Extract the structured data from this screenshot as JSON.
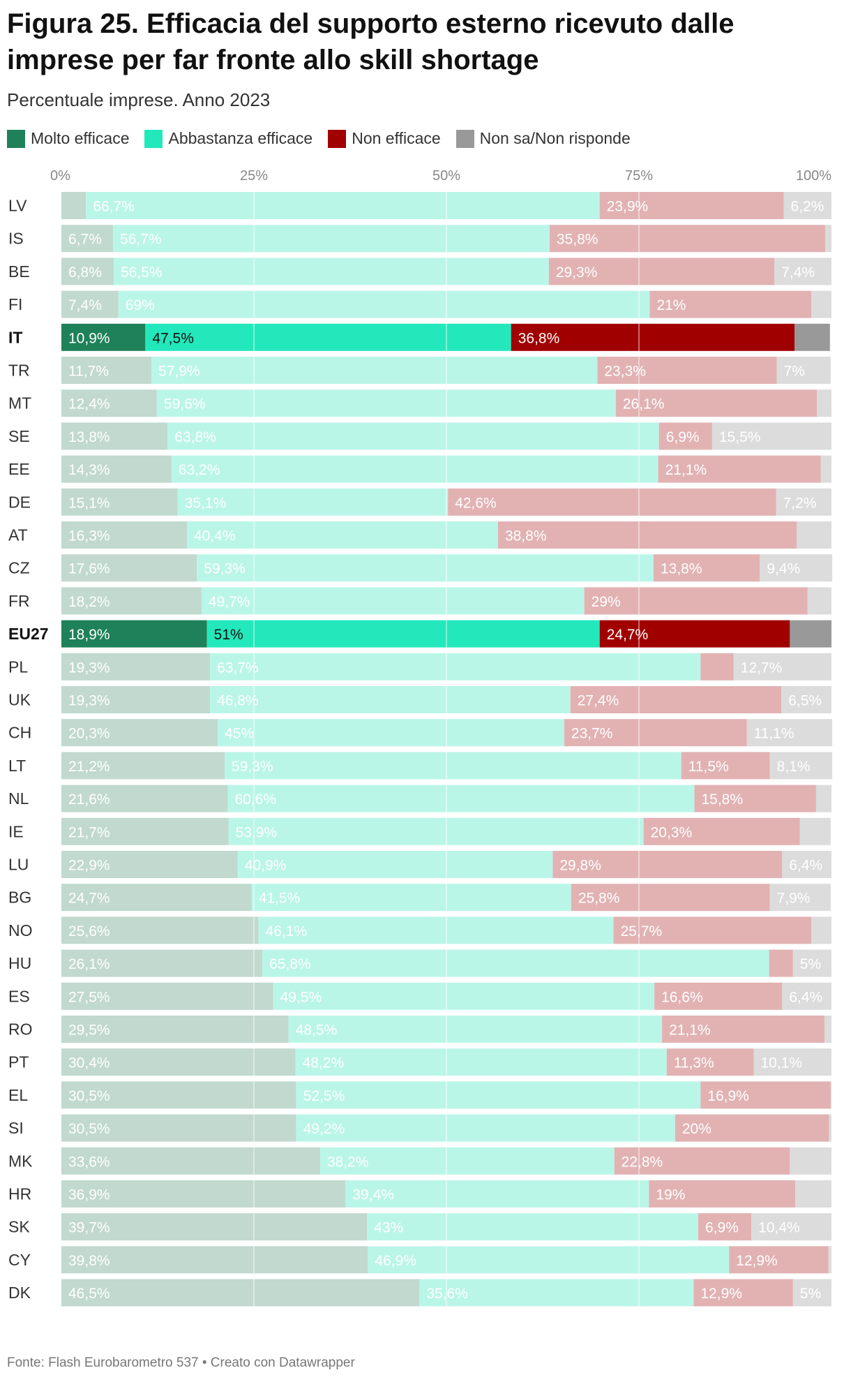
{
  "chart_data": {
    "type": "bar",
    "orientation": "horizontal-stacked-100",
    "title": "Figura 25. Efficacia del supporto esterno ricevuto dalle imprese per far fronte allo skill shortage",
    "subtitle": "Percentuale imprese. Anno 2023",
    "source": "Fonte: Flash Eurobarometro 537 • Creato con Datawrapper",
    "xlim": [
      0,
      100
    ],
    "ticks": [
      {
        "value": 0,
        "label": "0%"
      },
      {
        "value": 25,
        "label": "25%"
      },
      {
        "value": 50,
        "label": "50%"
      },
      {
        "value": 75,
        "label": "75%"
      },
      {
        "value": 100,
        "label": "100%"
      }
    ],
    "highlight": [
      "IT",
      "EU27"
    ],
    "legend_position": "top",
    "series": [
      {
        "name": "Molto efficace",
        "color": "#1f8159",
        "muted_color": "#c1d9cf"
      },
      {
        "name": "Abbastanza efficace",
        "color": "#22e8bb",
        "muted_color": "#baf6e8"
      },
      {
        "name": "Non efficace",
        "color": "#a10000",
        "muted_color": "#e2b2b3"
      },
      {
        "name": "Non sa/Non risponde",
        "color": "#999999",
        "muted_color": "#dcdcdc"
      }
    ],
    "rows": [
      {
        "country": "LV",
        "values": [
          3.2,
          66.7,
          23.9,
          6.2
        ],
        "labels": [
          "",
          "66,7%",
          "23,9%",
          "6,2%"
        ]
      },
      {
        "country": "IS",
        "values": [
          6.7,
          56.7,
          35.8,
          0.8
        ],
        "labels": [
          "6,7%",
          "56,7%",
          "35,8%",
          ""
        ]
      },
      {
        "country": "BE",
        "values": [
          6.8,
          56.5,
          29.3,
          7.4
        ],
        "labels": [
          "6,8%",
          "56,5%",
          "29,3%",
          "7,4%"
        ]
      },
      {
        "country": "FI",
        "values": [
          7.4,
          69,
          21,
          2.6
        ],
        "labels": [
          "7,4%",
          "69%",
          "21%",
          ""
        ]
      },
      {
        "country": "IT",
        "values": [
          10.9,
          47.5,
          36.8,
          4.6
        ],
        "labels": [
          "10,9%",
          "47,5%",
          "36,8%",
          ""
        ]
      },
      {
        "country": "TR",
        "values": [
          11.7,
          57.9,
          23.3,
          7
        ],
        "labels": [
          "11,7%",
          "57,9%",
          "23,3%",
          "7%"
        ]
      },
      {
        "country": "MT",
        "values": [
          12.4,
          59.6,
          26.1,
          1.9
        ],
        "labels": [
          "12,4%",
          "59,6%",
          "26,1%",
          ""
        ]
      },
      {
        "country": "SE",
        "values": [
          13.8,
          63.8,
          6.9,
          15.5
        ],
        "labels": [
          "13,8%",
          "63,8%",
          "6,9%",
          "15,5%"
        ]
      },
      {
        "country": "EE",
        "values": [
          14.3,
          63.2,
          21.1,
          1.4
        ],
        "labels": [
          "14,3%",
          "63,2%",
          "21,1%",
          ""
        ]
      },
      {
        "country": "DE",
        "values": [
          15.1,
          35.1,
          42.6,
          7.2
        ],
        "labels": [
          "15,1%",
          "35,1%",
          "42,6%",
          "7,2%"
        ]
      },
      {
        "country": "AT",
        "values": [
          16.3,
          40.4,
          38.8,
          4.5
        ],
        "labels": [
          "16,3%",
          "40,4%",
          "38,8%",
          ""
        ]
      },
      {
        "country": "CZ",
        "values": [
          17.6,
          59.3,
          13.8,
          9.4
        ],
        "labels": [
          "17,6%",
          "59,3%",
          "13,8%",
          "9,4%"
        ]
      },
      {
        "country": "FR",
        "values": [
          18.2,
          49.7,
          29,
          3.1
        ],
        "labels": [
          "18,2%",
          "49,7%",
          "29%",
          ""
        ]
      },
      {
        "country": "EU27",
        "values": [
          18.9,
          51,
          24.7,
          5.4
        ],
        "labels": [
          "18,9%",
          "51%",
          "24,7%",
          ""
        ]
      },
      {
        "country": "PL",
        "values": [
          19.3,
          63.7,
          4.3,
          12.7
        ],
        "labels": [
          "19,3%",
          "63,7%",
          "",
          "12,7%"
        ]
      },
      {
        "country": "UK",
        "values": [
          19.3,
          46.8,
          27.4,
          6.5
        ],
        "labels": [
          "19,3%",
          "46,8%",
          "27,4%",
          "6,5%"
        ]
      },
      {
        "country": "CH",
        "values": [
          20.3,
          45,
          23.7,
          11.1
        ],
        "labels": [
          "20,3%",
          "45%",
          "23,7%",
          "11,1%"
        ]
      },
      {
        "country": "LT",
        "values": [
          21.2,
          59.3,
          11.5,
          8.1
        ],
        "labels": [
          "21,2%",
          "59,3%",
          "11,5%",
          "8,1%"
        ]
      },
      {
        "country": "NL",
        "values": [
          21.6,
          60.6,
          15.8,
          2
        ],
        "labels": [
          "21,6%",
          "60,6%",
          "15,8%",
          ""
        ]
      },
      {
        "country": "IE",
        "values": [
          21.7,
          53.9,
          20.3,
          4
        ],
        "labels": [
          "21,7%",
          "53,9%",
          "20,3%",
          ""
        ]
      },
      {
        "country": "LU",
        "values": [
          22.9,
          40.9,
          29.8,
          6.4
        ],
        "labels": [
          "22,9%",
          "40,9%",
          "29,8%",
          "6,4%"
        ]
      },
      {
        "country": "BG",
        "values": [
          24.7,
          41.5,
          25.8,
          7.9
        ],
        "labels": [
          "24,7%",
          "41,5%",
          "25,8%",
          "7,9%"
        ]
      },
      {
        "country": "NO",
        "values": [
          25.6,
          46.1,
          25.7,
          2.6
        ],
        "labels": [
          "25,6%",
          "46,1%",
          "25,7%",
          ""
        ]
      },
      {
        "country": "HU",
        "values": [
          26.1,
          65.8,
          3.1,
          5
        ],
        "labels": [
          "26,1%",
          "65,8%",
          "",
          "5%"
        ]
      },
      {
        "country": "ES",
        "values": [
          27.5,
          49.5,
          16.6,
          6.4
        ],
        "labels": [
          "27,5%",
          "49,5%",
          "16,6%",
          "6,4%"
        ]
      },
      {
        "country": "RO",
        "values": [
          29.5,
          48.5,
          21.1,
          0.9
        ],
        "labels": [
          "29,5%",
          "48,5%",
          "21,1%",
          ""
        ]
      },
      {
        "country": "PT",
        "values": [
          30.4,
          48.2,
          11.3,
          10.1
        ],
        "labels": [
          "30,4%",
          "48,2%",
          "11,3%",
          "10,1%"
        ]
      },
      {
        "country": "EL",
        "values": [
          30.5,
          52.5,
          16.9,
          0.1
        ],
        "labels": [
          "30,5%",
          "52,5%",
          "16,9%",
          ""
        ]
      },
      {
        "country": "SI",
        "values": [
          30.5,
          49.2,
          20,
          0.3
        ],
        "labels": [
          "30,5%",
          "49,2%",
          "20%",
          ""
        ]
      },
      {
        "country": "MK",
        "values": [
          33.6,
          38.2,
          22.8,
          5.4
        ],
        "labels": [
          "33,6%",
          "38,2%",
          "22,8%",
          ""
        ]
      },
      {
        "country": "HR",
        "values": [
          36.9,
          39.4,
          19,
          4.7
        ],
        "labels": [
          "36,9%",
          "39,4%",
          "19%",
          ""
        ]
      },
      {
        "country": "SK",
        "values": [
          39.7,
          43,
          6.9,
          10.4
        ],
        "labels": [
          "39,7%",
          "43%",
          "6,9%",
          "10,4%"
        ]
      },
      {
        "country": "CY",
        "values": [
          39.8,
          46.9,
          12.9,
          0.4
        ],
        "labels": [
          "39,8%",
          "46,9%",
          "12,9%",
          ""
        ]
      },
      {
        "country": "DK",
        "values": [
          46.5,
          35.6,
          12.9,
          5
        ],
        "labels": [
          "46,5%",
          "35,6%",
          "12,9%",
          "5%"
        ]
      }
    ]
  }
}
